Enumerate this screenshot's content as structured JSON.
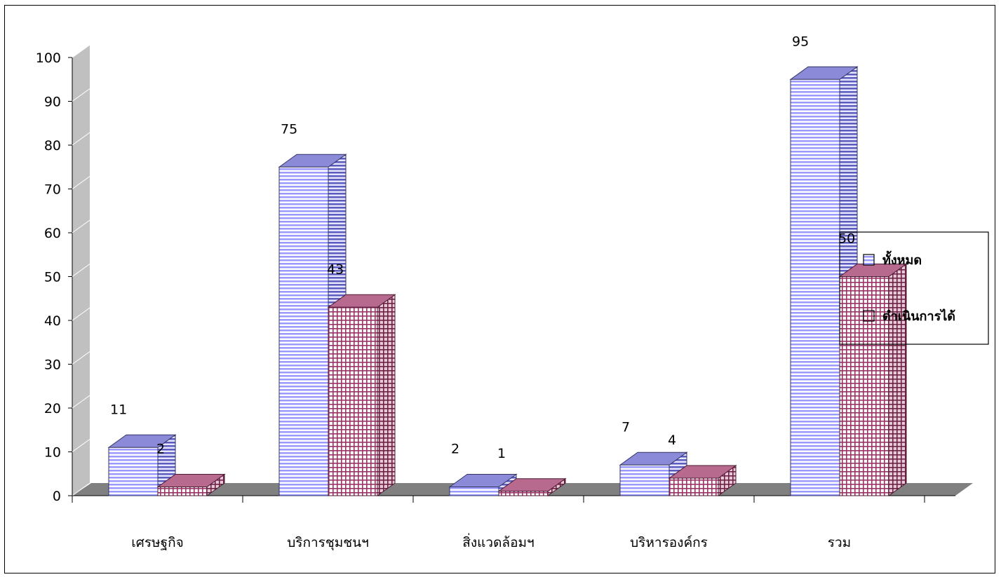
{
  "chart_data": {
    "type": "bar",
    "style": "3d-clustered-column",
    "categories": [
      "เศรษฐกิจ",
      "บริการชุมชนฯ",
      "สิ่งแวดล้อมฯ",
      "บริหารองค์กร",
      "รวม"
    ],
    "series": [
      {
        "name": "ทั้งหมด",
        "values": [
          11,
          75,
          2,
          7,
          95
        ],
        "color": "#9999ff",
        "pattern": "horizontal-stripes"
      },
      {
        "name": "ดำเนินการได้",
        "values": [
          2,
          43,
          1,
          4,
          50
        ],
        "color": "#993366",
        "pattern": "grid"
      }
    ],
    "data_labels": [
      [
        "11",
        "75",
        "2",
        "7",
        "95"
      ],
      [
        "2",
        "43",
        "1",
        "4",
        "50"
      ]
    ],
    "ylim": [
      0,
      100
    ],
    "yticks": [
      0,
      10,
      20,
      30,
      40,
      50,
      60,
      70,
      80,
      90,
      100
    ],
    "ytick_labels": [
      "0",
      "10",
      "20",
      "30",
      "40",
      "50",
      "60",
      "70",
      "80",
      "90",
      "100"
    ],
    "title": "",
    "xlabel": "",
    "ylabel": "",
    "legend_position": "right",
    "grid": false
  }
}
